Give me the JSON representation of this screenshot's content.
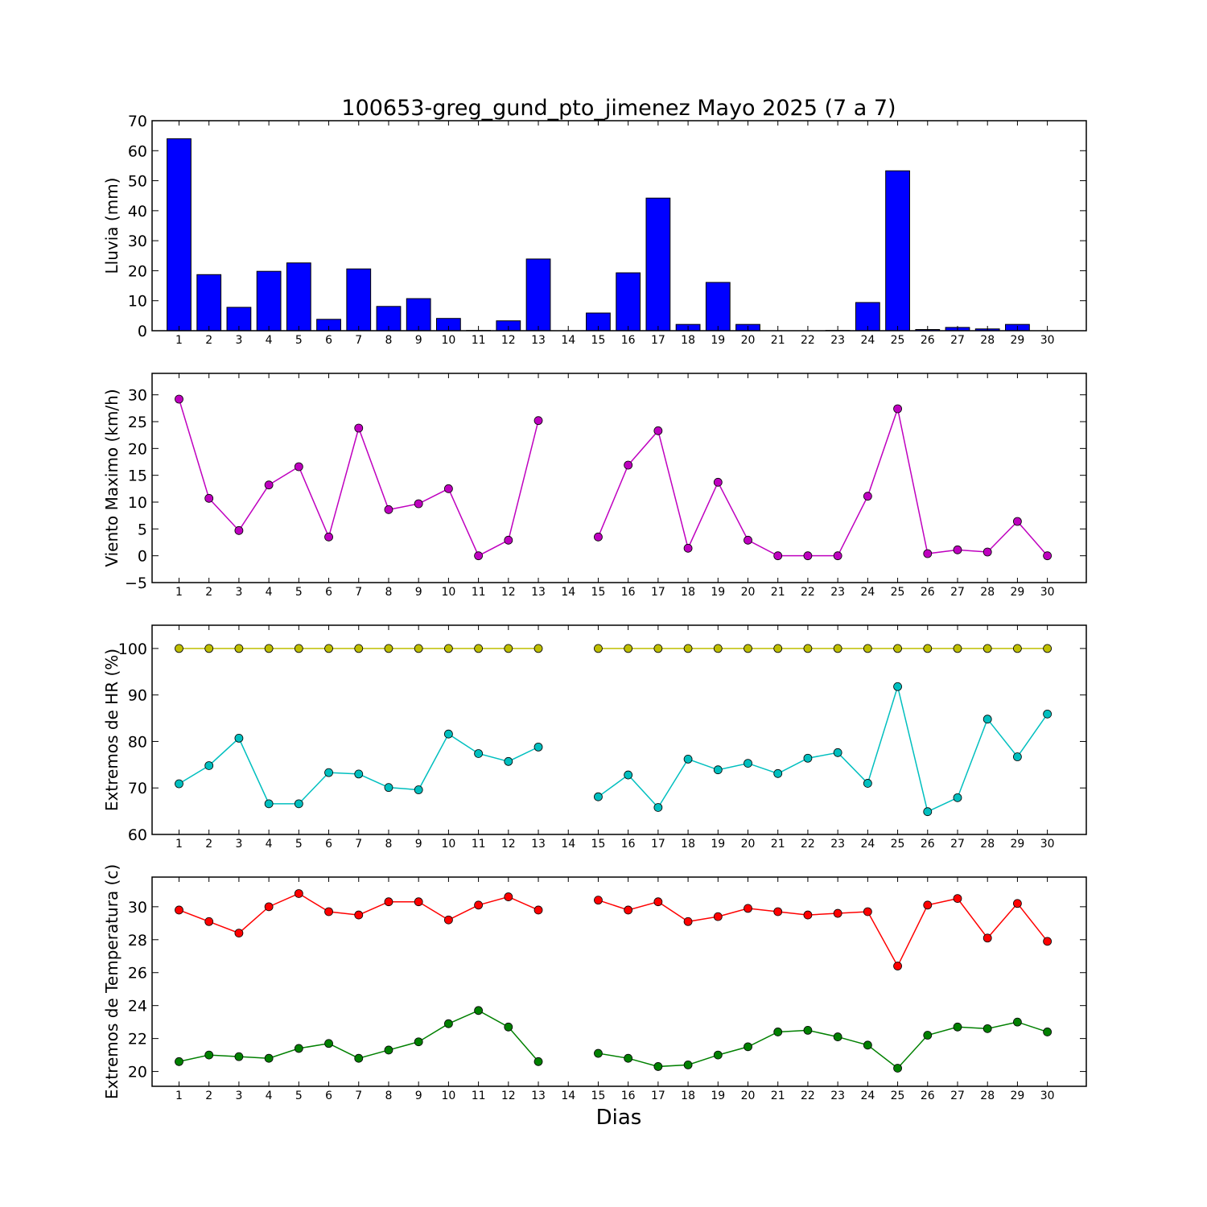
{
  "title": "100653-greg_gund_pto_jimenez Mayo 2025  (7 a 7)",
  "xlabel": "Dias",
  "chart_data": [
    {
      "type": "bar",
      "ylabel": "Lluvia (mm)",
      "ylim": [
        0,
        70
      ],
      "yticks": [
        0,
        10,
        20,
        30,
        40,
        50,
        60,
        70
      ],
      "categories": [
        "1",
        "2",
        "3",
        "4",
        "5",
        "6",
        "7",
        "8",
        "9",
        "10",
        "11",
        "12",
        "13",
        "14",
        "15",
        "16",
        "17",
        "18",
        "19",
        "20",
        "21",
        "22",
        "23",
        "24",
        "25",
        "26",
        "27",
        "28",
        "29",
        "30"
      ],
      "series": [
        {
          "color": "#0000ff",
          "values": [
            64.0,
            18.7,
            7.8,
            19.8,
            22.6,
            3.8,
            20.6,
            8.1,
            10.7,
            4.1,
            0.1,
            3.3,
            23.9,
            null,
            5.9,
            19.3,
            44.2,
            2.1,
            16.1,
            2.1,
            0.0,
            0.0,
            0.1,
            9.4,
            53.3,
            0.4,
            1.1,
            0.6,
            2.1,
            null
          ]
        }
      ],
      "grid": false
    },
    {
      "type": "line",
      "ylabel": "Viento Maximo (km/h)",
      "ylim": [
        -5,
        34
      ],
      "yticks": [
        -5,
        0,
        5,
        10,
        15,
        20,
        25,
        30
      ],
      "categories": [
        "1",
        "2",
        "3",
        "4",
        "5",
        "6",
        "7",
        "8",
        "9",
        "10",
        "11",
        "12",
        "13",
        "14",
        "15",
        "16",
        "17",
        "18",
        "19",
        "20",
        "21",
        "22",
        "23",
        "24",
        "25",
        "26",
        "27",
        "28",
        "29",
        "30"
      ],
      "series": [
        {
          "color": "#bf00bf",
          "values": [
            29.2,
            10.7,
            4.7,
            13.2,
            16.6,
            3.5,
            23.8,
            8.6,
            9.7,
            12.5,
            0.0,
            2.9,
            25.2,
            null,
            3.5,
            16.9,
            23.3,
            1.4,
            13.7,
            2.9,
            0.0,
            0.0,
            0.0,
            11.1,
            27.4,
            0.4,
            1.1,
            0.7,
            6.4,
            0.0
          ]
        }
      ],
      "grid": false
    },
    {
      "type": "line",
      "ylabel": "Extremos de HR (%)",
      "ylim": [
        60,
        105
      ],
      "yticks": [
        60,
        70,
        80,
        90,
        100
      ],
      "categories": [
        "1",
        "2",
        "3",
        "4",
        "5",
        "6",
        "7",
        "8",
        "9",
        "10",
        "11",
        "12",
        "13",
        "14",
        "15",
        "16",
        "17",
        "18",
        "19",
        "20",
        "21",
        "22",
        "23",
        "24",
        "25",
        "26",
        "27",
        "28",
        "29",
        "30"
      ],
      "series": [
        {
          "color": "#bfbf00",
          "values": [
            100,
            100,
            100,
            100,
            100,
            100,
            100,
            100,
            100,
            100,
            100,
            100,
            100,
            null,
            100,
            100,
            100,
            100,
            100,
            100,
            100,
            100,
            100,
            100,
            100,
            100,
            100,
            100,
            100,
            100
          ]
        },
        {
          "color": "#00bfbf",
          "values": [
            70.9,
            74.8,
            80.7,
            66.6,
            66.6,
            73.3,
            73.0,
            70.1,
            69.6,
            81.6,
            77.4,
            75.7,
            78.8,
            null,
            68.1,
            72.8,
            65.8,
            76.2,
            73.9,
            75.3,
            73.1,
            76.4,
            77.6,
            71.0,
            91.8,
            64.9,
            67.9,
            84.8,
            76.7,
            85.9
          ]
        }
      ],
      "grid": false
    },
    {
      "type": "line",
      "ylabel": "Extremos de Temperatura (c)",
      "ylim": [
        19.1,
        31.8
      ],
      "yticks": [
        20,
        22,
        24,
        26,
        28,
        30
      ],
      "categories": [
        "1",
        "2",
        "3",
        "4",
        "5",
        "6",
        "7",
        "8",
        "9",
        "10",
        "11",
        "12",
        "13",
        "14",
        "15",
        "16",
        "17",
        "18",
        "19",
        "20",
        "21",
        "22",
        "23",
        "24",
        "25",
        "26",
        "27",
        "28",
        "29",
        "30"
      ],
      "series": [
        {
          "color": "#ff0000",
          "values": [
            29.8,
            29.1,
            28.4,
            30.0,
            30.8,
            29.7,
            29.5,
            30.3,
            30.3,
            29.2,
            30.1,
            30.6,
            29.8,
            null,
            30.4,
            29.8,
            30.3,
            29.1,
            29.4,
            29.9,
            29.7,
            29.5,
            29.6,
            29.7,
            26.4,
            30.1,
            30.5,
            28.1,
            30.2,
            27.9
          ]
        },
        {
          "color": "#008000",
          "values": [
            20.6,
            21.0,
            20.9,
            20.8,
            21.4,
            21.7,
            20.8,
            21.3,
            21.8,
            22.9,
            23.7,
            22.7,
            20.6,
            null,
            21.1,
            20.8,
            20.3,
            20.4,
            21.0,
            21.5,
            22.4,
            22.5,
            22.1,
            21.6,
            20.2,
            22.2,
            22.7,
            22.6,
            23.0,
            22.4
          ]
        }
      ],
      "grid": false
    }
  ]
}
